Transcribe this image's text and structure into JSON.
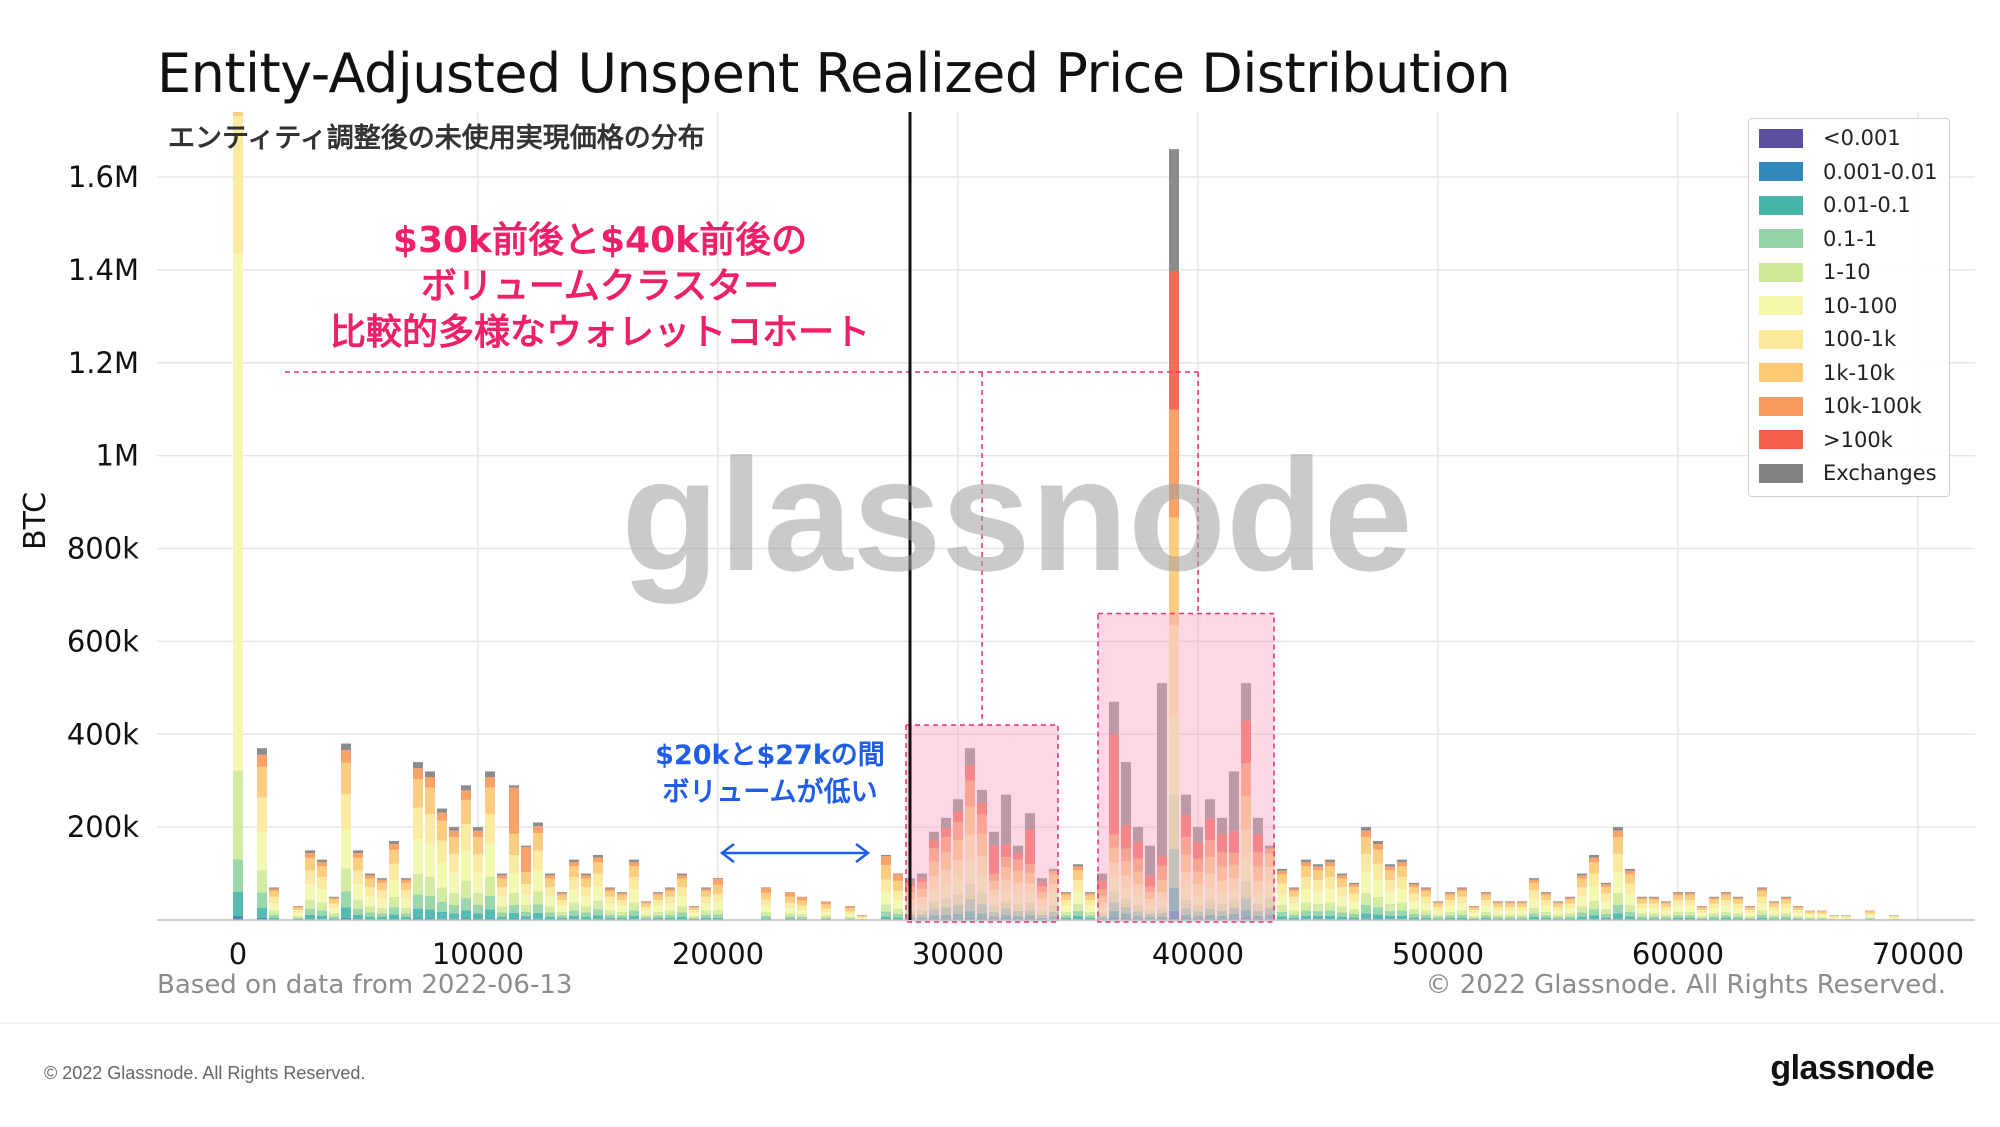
{
  "chart_data": {
    "type": "bar",
    "title": "Entity-Adjusted Unspent Realized Price Distribution",
    "subtitle": "エンティティ調整後の未使用実現価格の分布",
    "xlabel": "",
    "ylabel": "BTC",
    "xlim": [
      0,
      72000
    ],
    "ylim": [
      0,
      1740000
    ],
    "xticks": [
      0,
      10000,
      20000,
      30000,
      40000,
      50000,
      60000,
      70000
    ],
    "xtick_labels": [
      "0",
      "10000",
      "20000",
      "30000",
      "40000",
      "50000",
      "60000",
      "70000"
    ],
    "yticks": [
      200000,
      400000,
      600000,
      800000,
      1000000,
      1200000,
      1400000,
      1600000
    ],
    "ytick_labels": [
      "200k",
      "400k",
      "600k",
      "800k",
      "1M",
      "1.2M",
      "1.4M",
      "1.6M"
    ],
    "bin_width": 500,
    "bins": [
      0,
      1000,
      1500,
      2500,
      3000,
      3500,
      4000,
      4500,
      5000,
      5500,
      6000,
      6500,
      7000,
      7500,
      8000,
      8500,
      9000,
      9500,
      10000,
      10500,
      11000,
      11500,
      12000,
      12500,
      13000,
      13500,
      14000,
      14500,
      15000,
      15500,
      16000,
      16500,
      17000,
      17500,
      18000,
      18500,
      19000,
      19500,
      20000,
      22000,
      23000,
      23500,
      24500,
      25500,
      26000,
      27000,
      27500,
      28000,
      28500,
      29000,
      29500,
      30000,
      30500,
      31000,
      31500,
      32000,
      32500,
      33000,
      33500,
      34000,
      34500,
      35000,
      35500,
      36000,
      36500,
      37000,
      37500,
      38000,
      38500,
      39000,
      39500,
      40000,
      40500,
      41000,
      41500,
      42000,
      42500,
      43000,
      43500,
      44000,
      44500,
      45000,
      45500,
      46000,
      46500,
      47000,
      47500,
      48000,
      48500,
      49000,
      49500,
      50000,
      50500,
      51000,
      51500,
      52000,
      52500,
      53000,
      53500,
      54000,
      54500,
      55000,
      55500,
      56000,
      56500,
      57000,
      57500,
      58000,
      58500,
      59000,
      59500,
      60000,
      60500,
      61000,
      61500,
      62000,
      62500,
      63000,
      63500,
      64000,
      64500,
      65000,
      65500,
      66000,
      66500,
      67000,
      68000,
      69000
    ],
    "totals": [
      1740000,
      370000,
      70000,
      30000,
      150000,
      130000,
      50000,
      380000,
      150000,
      100000,
      90000,
      170000,
      90000,
      340000,
      320000,
      240000,
      200000,
      290000,
      200000,
      320000,
      100000,
      290000,
      160000,
      210000,
      100000,
      60000,
      130000,
      100000,
      140000,
      70000,
      60000,
      130000,
      40000,
      60000,
      70000,
      100000,
      30000,
      70000,
      90000,
      70000,
      60000,
      50000,
      40000,
      30000,
      10000,
      140000,
      100000,
      90000,
      100000,
      190000,
      220000,
      260000,
      370000,
      280000,
      190000,
      270000,
      160000,
      230000,
      90000,
      110000,
      60000,
      120000,
      60000,
      100000,
      470000,
      340000,
      200000,
      160000,
      510000,
      1660000,
      270000,
      200000,
      260000,
      220000,
      320000,
      510000,
      220000,
      160000,
      110000,
      70000,
      130000,
      120000,
      130000,
      100000,
      80000,
      200000,
      170000,
      120000,
      130000,
      80000,
      70000,
      40000,
      60000,
      70000,
      30000,
      60000,
      40000,
      40000,
      40000,
      90000,
      60000,
      40000,
      50000,
      100000,
      140000,
      80000,
      200000,
      110000,
      50000,
      50000,
      40000,
      60000,
      60000,
      30000,
      50000,
      60000,
      50000,
      30000,
      70000,
      40000,
      50000,
      30000,
      20000,
      20000,
      10000,
      10000,
      20000,
      10000
    ],
    "series": [
      {
        "name": "<0.001",
        "color": "#5e4fa2"
      },
      {
        "name": "0.001-0.01",
        "color": "#3288bd"
      },
      {
        "name": "0.01-0.1",
        "color": "#48b5a9"
      },
      {
        "name": "0.1-1",
        "color": "#94d4a4"
      },
      {
        "name": "1-10",
        "color": "#cfe99a"
      },
      {
        "name": "10-100",
        "color": "#f4f7ab"
      },
      {
        "name": "100-1k",
        "color": "#fbe99a"
      },
      {
        "name": "1k-10k",
        "color": "#fdc975"
      },
      {
        "name": "10k-100k",
        "color": "#f99a5c"
      },
      {
        "name": ">100k",
        "color": "#f26049"
      },
      {
        "name": "Exchanges",
        "color": "#828282"
      }
    ],
    "legend_position": "top-right",
    "vertical_line_x": 28000,
    "highlight_ranges": [
      [
        28000,
        34000
      ],
      [
        36000,
        43000
      ]
    ]
  },
  "annotations": {
    "cluster_line1": "$30k前後と$40k前後の",
    "cluster_line2": "ボリュームクラスター",
    "cluster_line3": "比較的多様なウォレットコホート",
    "gap_line1": "$20kと$27kの間",
    "gap_line2": "ボリュームが低い"
  },
  "watermark": "glassnode",
  "footer": {
    "based_on": "Based on data from 2022-06-13",
    "rights": "© 2022 Glassnode. All Rights Reserved.",
    "copyright": "© 2022 Glassnode. All Rights Reserved.",
    "brand": "glassnode"
  }
}
